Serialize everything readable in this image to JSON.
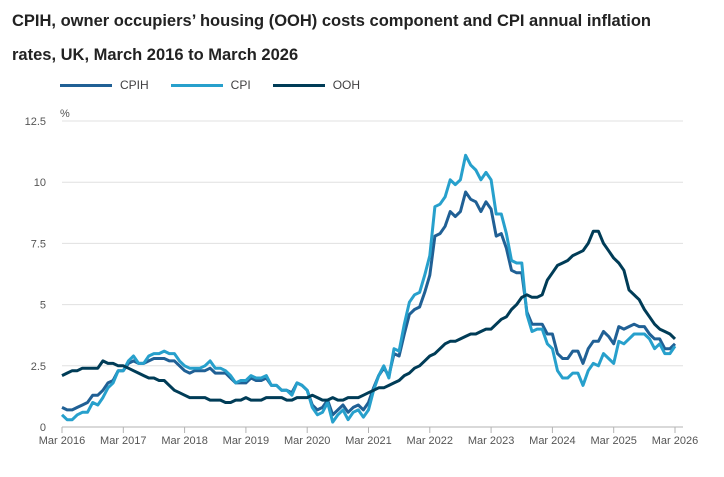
{
  "title": "CPIH, owner occupiers’ housing (OOH) costs component and CPI annual inflation rates, UK, March 2016 to March 2026",
  "chart_data": {
    "type": "line",
    "title": "CPIH, owner occupiers’ housing (OOH) costs component and CPI annual inflation rates, UK, March 2016 to March 2026",
    "ylabel": "%",
    "xlabel": "",
    "ylim": [
      0,
      12.5
    ],
    "yticks": [
      "0",
      "2.5",
      "5",
      "7.5",
      "10",
      "12.5"
    ],
    "xticks": [
      "Mar 2016",
      "Mar 2017",
      "Mar 2018",
      "Mar 2019",
      "Mar 2020",
      "Mar 2021",
      "Mar 2022",
      "Mar 2023",
      "Mar 2024",
      "Mar 2025",
      "Mar 2026"
    ],
    "x_start": "Mar 2016",
    "x_end": "Mar 2026",
    "frequency": "monthly",
    "grid": true,
    "legend_position": "top-left",
    "series": [
      {
        "name": "CPIH",
        "color": "#206095",
        "values": [
          0.8,
          0.7,
          0.7,
          0.8,
          0.9,
          1.0,
          1.3,
          1.3,
          1.5,
          1.8,
          1.9,
          2.3,
          2.3,
          2.6,
          2.7,
          2.6,
          2.6,
          2.7,
          2.8,
          2.8,
          2.8,
          2.7,
          2.7,
          2.5,
          2.3,
          2.2,
          2.3,
          2.3,
          2.3,
          2.4,
          2.2,
          2.2,
          2.2,
          2.0,
          1.8,
          1.8,
          1.8,
          2.0,
          1.9,
          1.9,
          2.0,
          1.7,
          1.7,
          1.5,
          1.5,
          1.4,
          1.8,
          1.7,
          1.5,
          0.9,
          0.7,
          0.8,
          1.1,
          0.5,
          0.7,
          0.9,
          0.6,
          0.8,
          0.9,
          0.7,
          1.0,
          1.6,
          2.1,
          2.4,
          2.1,
          3.0,
          2.9,
          3.8,
          4.6,
          4.8,
          4.9,
          5.5,
          6.2,
          7.8,
          7.9,
          8.2,
          8.8,
          8.6,
          8.8,
          9.6,
          9.3,
          9.2,
          8.8,
          9.2,
          8.9,
          7.8,
          7.9,
          7.3,
          6.4,
          6.3,
          6.3,
          4.7,
          4.2,
          4.2,
          4.2,
          3.8,
          3.8,
          3.0,
          2.8,
          2.8,
          3.1,
          3.1,
          2.6,
          3.2,
          3.5,
          3.5,
          3.9,
          3.7,
          3.4,
          4.1,
          4.0,
          4.1,
          4.2,
          4.1,
          4.1,
          3.8,
          3.6,
          3.6,
          3.2,
          3.2,
          3.4
        ]
      },
      {
        "name": "CPI",
        "color": "#27a0cc",
        "values": [
          0.5,
          0.3,
          0.3,
          0.5,
          0.6,
          0.6,
          1.0,
          0.9,
          1.2,
          1.6,
          1.8,
          2.3,
          2.3,
          2.7,
          2.9,
          2.6,
          2.6,
          2.9,
          3.0,
          3.0,
          3.1,
          3.0,
          3.0,
          2.7,
          2.5,
          2.4,
          2.4,
          2.4,
          2.5,
          2.7,
          2.4,
          2.4,
          2.3,
          2.1,
          1.8,
          1.9,
          1.9,
          2.1,
          2.0,
          2.0,
          2.1,
          1.7,
          1.7,
          1.5,
          1.5,
          1.3,
          1.8,
          1.7,
          1.5,
          0.8,
          0.5,
          0.6,
          1.0,
          0.2,
          0.5,
          0.7,
          0.3,
          0.6,
          0.7,
          0.4,
          0.7,
          1.5,
          2.1,
          2.5,
          2.0,
          3.2,
          3.1,
          4.2,
          5.1,
          5.4,
          5.5,
          6.2,
          7.0,
          9.0,
          9.1,
          9.4,
          10.1,
          9.9,
          10.1,
          11.1,
          10.7,
          10.5,
          10.1,
          10.4,
          10.1,
          8.7,
          8.7,
          7.9,
          6.8,
          6.7,
          6.7,
          4.6,
          3.9,
          4.0,
          4.0,
          3.4,
          3.2,
          2.3,
          2.0,
          2.0,
          2.2,
          2.2,
          1.7,
          2.3,
          2.6,
          2.5,
          3.0,
          2.8,
          2.6,
          3.5,
          3.4,
          3.6,
          3.8,
          3.8,
          3.8,
          3.6,
          3.2,
          3.4,
          3.0,
          3.0,
          3.3
        ]
      },
      {
        "name": "OOH",
        "color": "#003c57",
        "values": [
          2.1,
          2.2,
          2.3,
          2.3,
          2.4,
          2.4,
          2.4,
          2.4,
          2.7,
          2.6,
          2.6,
          2.5,
          2.5,
          2.4,
          2.3,
          2.2,
          2.1,
          2.0,
          2.0,
          1.9,
          1.9,
          1.7,
          1.5,
          1.4,
          1.3,
          1.2,
          1.2,
          1.2,
          1.2,
          1.1,
          1.1,
          1.1,
          1.0,
          1.0,
          1.1,
          1.1,
          1.2,
          1.1,
          1.1,
          1.1,
          1.2,
          1.2,
          1.2,
          1.2,
          1.1,
          1.1,
          1.2,
          1.2,
          1.2,
          1.3,
          1.2,
          1.1,
          1.1,
          1.2,
          1.1,
          1.1,
          1.2,
          1.2,
          1.2,
          1.3,
          1.4,
          1.5,
          1.6,
          1.6,
          1.7,
          1.8,
          1.9,
          2.1,
          2.2,
          2.4,
          2.5,
          2.7,
          2.9,
          3.0,
          3.2,
          3.4,
          3.5,
          3.5,
          3.6,
          3.7,
          3.8,
          3.8,
          3.9,
          4.0,
          4.0,
          4.2,
          4.4,
          4.5,
          4.8,
          5.0,
          5.3,
          5.4,
          5.3,
          5.3,
          5.4,
          6.0,
          6.3,
          6.6,
          6.7,
          6.8,
          7.0,
          7.1,
          7.2,
          7.5,
          8.0,
          8.0,
          7.5,
          7.2,
          6.9,
          6.7,
          6.4,
          5.6,
          5.4,
          5.2,
          4.8,
          4.5,
          4.2,
          4.0,
          3.9,
          3.8,
          3.6
        ]
      }
    ]
  }
}
